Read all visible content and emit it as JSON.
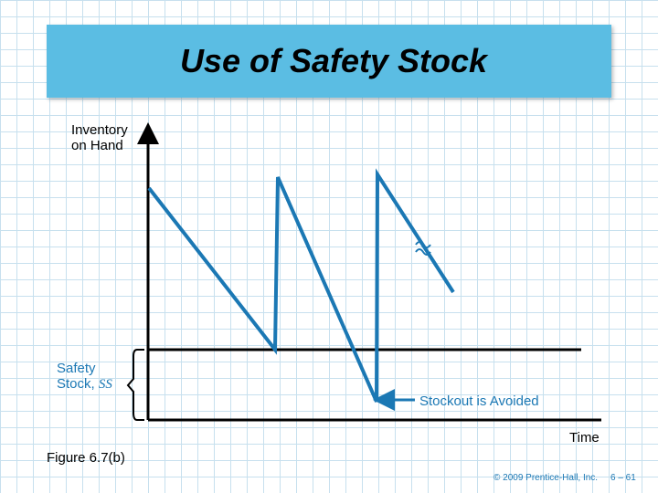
{
  "title": "Use of Safety Stock",
  "diagram": {
    "y_axis_label_line1": "Inventory",
    "y_axis_label_line2": "on Hand",
    "x_axis_label": "Time",
    "safety_stock_label_line1": "Safety",
    "safety_stock_label_line2_prefix": "Stock, ",
    "safety_stock_label_symbol": "SS",
    "stockout_label": "Stockout is Avoided",
    "line_color": "#1b78b4",
    "axis_color": "#000000"
  },
  "footer": {
    "figure_label": "Figure 6.7(b)",
    "copyright": "© 2009 Prentice-Hall, Inc.",
    "page_number": "6 – 61"
  }
}
